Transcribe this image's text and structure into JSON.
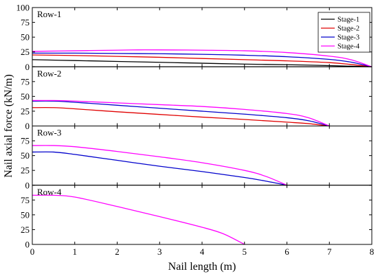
{
  "chart_data": {
    "type": "line",
    "xlabel": "Nail length (m)",
    "ylabel": "Nail axial force (kN/m)",
    "xlim": [
      0,
      8
    ],
    "x_ticks": [
      "0",
      "1",
      "2",
      "3",
      "4",
      "5",
      "6",
      "7",
      "8"
    ],
    "grid": false,
    "legend": {
      "placement": "top-right of first panel",
      "entries": [
        {
          "name": "Stage-1",
          "color": "#000000"
        },
        {
          "name": "Stage-2",
          "color": "#e00000"
        },
        {
          "name": "Stage-3",
          "color": "#0000cc"
        },
        {
          "name": "Stage-4",
          "color": "#ff00ff"
        }
      ]
    },
    "panels": [
      {
        "label": "Row-1",
        "ylim": [
          0,
          100
        ],
        "y_ticks": [
          "100",
          "75",
          "50",
          "25",
          "0"
        ],
        "series": [
          {
            "name": "Stage-1",
            "color": "#000000",
            "x": [
              0,
              1,
              2,
              3,
              4,
              5,
              6,
              7,
              7.5,
              8
            ],
            "y": [
              12,
              10.5,
              9,
              7.5,
              6,
              4.5,
              3.5,
              2,
              1,
              0
            ]
          },
          {
            "name": "Stage-2",
            "color": "#e00000",
            "x": [
              0,
              1,
              2,
              3,
              4,
              5,
              6,
              7,
              7.5,
              8
            ],
            "y": [
              20,
              19,
              17.5,
              16,
              14,
              12,
              10,
              7,
              4,
              0
            ]
          },
          {
            "name": "Stage-3",
            "color": "#0000cc",
            "x": [
              0,
              1,
              2,
              3,
              4,
              5,
              6,
              7,
              7.5,
              8
            ],
            "y": [
              23,
              23,
              22.5,
              22,
              21,
              19.5,
              17,
              12.5,
              8,
              0
            ]
          },
          {
            "name": "Stage-4",
            "color": "#ff00ff",
            "x": [
              0,
              1,
              2,
              2.5,
              3,
              4,
              5,
              6,
              7,
              7.5,
              8
            ],
            "y": [
              26,
              27,
              28,
              28.5,
              28.5,
              28,
              27,
              24,
              18,
              12,
              0
            ]
          }
        ]
      },
      {
        "label": "Row-2",
        "ylim": [
          0,
          100
        ],
        "y_ticks": [
          "75",
          "50",
          "25",
          "0"
        ],
        "series": [
          {
            "name": "Stage-2",
            "color": "#e00000",
            "x": [
              0,
              0.5,
              1,
              2,
              3,
              4,
              5,
              6,
              6.5,
              7
            ],
            "y": [
              31,
              31,
              29,
              24,
              19.5,
              15,
              11,
              6.5,
              4,
              0
            ]
          },
          {
            "name": "Stage-3",
            "color": "#0000cc",
            "x": [
              0,
              0.5,
              1,
              2,
              3,
              4,
              5,
              6,
              6.5,
              7
            ],
            "y": [
              42,
              42,
              40,
              35,
              30,
              25,
              20,
              14,
              9,
              0
            ]
          },
          {
            "name": "Stage-4",
            "color": "#ff00ff",
            "x": [
              0,
              0.5,
              1,
              2,
              3,
              4,
              5,
              6,
              6.5,
              7
            ],
            "y": [
              43,
              43,
              42,
              39,
              36,
              33,
              28,
              21,
              14,
              0
            ]
          }
        ]
      },
      {
        "label": "Row-3",
        "ylim": [
          0,
          100
        ],
        "y_ticks": [
          "75",
          "50",
          "25",
          "0"
        ],
        "series": [
          {
            "name": "Stage-3",
            "color": "#0000cc",
            "x": [
              0,
              0.5,
              1,
              2,
              3,
              4,
              5,
              5.5,
              6
            ],
            "y": [
              56,
              56,
              52,
              42,
              32,
              23,
              13,
              7,
              0
            ]
          },
          {
            "name": "Stage-4",
            "color": "#ff00ff",
            "x": [
              0,
              0.5,
              1,
              2,
              3,
              4,
              5,
              5.5,
              6
            ],
            "y": [
              67,
              67,
              65,
              57,
              48,
              38,
              25,
              15,
              0
            ]
          }
        ]
      },
      {
        "label": "Row-4",
        "ylim": [
          0,
          100
        ],
        "y_ticks": [
          "75",
          "50",
          "25",
          "0"
        ],
        "series": [
          {
            "name": "Stage-4",
            "color": "#ff00ff",
            "x": [
              0,
              0.5,
              1,
              2,
              3,
              4,
              4.5,
              5
            ],
            "y": [
              83,
              83,
              80,
              64,
              47,
              29,
              18,
              0
            ]
          }
        ]
      }
    ]
  }
}
